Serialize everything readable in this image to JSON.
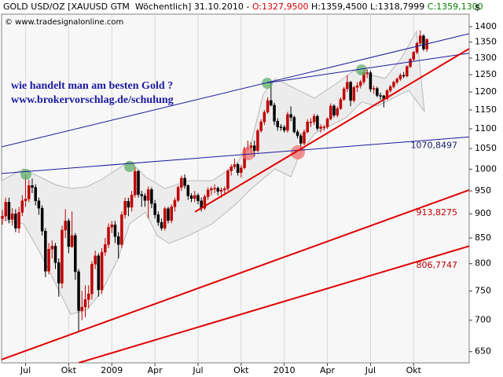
{
  "chart_data": {
    "type": "candlestick",
    "header": [
      {
        "text": "GOLD USD/OZ [XAUUSD GTM  Wöchentlich] 31.10.2010 - ",
        "color": "#000000"
      },
      {
        "text": "O:1327,9500",
        "color": "#d00000"
      },
      {
        "text": " H:1359,4500 L:1318,7999 ",
        "color": "#000000"
      },
      {
        "text": "C:1359,1300",
        "color": "#008000"
      }
    ],
    "copyright": "© www.tradesignalonline.com",
    "y_unit": "$",
    "annotations": [
      "wie handelt man am besten Gold ?",
      "www.brokervorschlag.de/schulung"
    ],
    "categories": [
      null,
      null,
      null,
      null,
      null,
      null,
      null,
      "Jul",
      null,
      null,
      null,
      null,
      null,
      null,
      null,
      null,
      null,
      null,
      null,
      null,
      "Okt",
      null,
      null,
      null,
      null,
      null,
      null,
      null,
      null,
      null,
      null,
      null,
      null,
      "2009",
      null,
      null,
      null,
      null,
      null,
      null,
      null,
      null,
      null,
      null,
      null,
      null,
      "Apr",
      null,
      null,
      null,
      null,
      null,
      null,
      null,
      null,
      null,
      null,
      null,
      null,
      "Jul",
      null,
      null,
      null,
      null,
      null,
      null,
      null,
      null,
      null,
      null,
      null,
      null,
      "Okt",
      null,
      null,
      null,
      null,
      null,
      null,
      null,
      null,
      null,
      null,
      null,
      null,
      "2010",
      null,
      null,
      null,
      null,
      null,
      null,
      null,
      null,
      null,
      null,
      null,
      null,
      "Apr",
      null,
      null,
      null,
      null,
      null,
      null,
      null,
      null,
      null,
      null,
      null,
      null,
      "Jul",
      null,
      null,
      null,
      null,
      null,
      null,
      null,
      null,
      null,
      null,
      null,
      null,
      "Okt",
      null,
      null,
      null,
      null
    ],
    "open": [
      890,
      895,
      925,
      888,
      900,
      870,
      903,
      928,
      932,
      962,
      958,
      928,
      912,
      864,
      786,
      828,
      834,
      802,
      764,
      866,
      885,
      833,
      855,
      785,
      716,
      722,
      735,
      745,
      799,
      815,
      752,
      822,
      837,
      872,
      877,
      853,
      837,
      898,
      927,
      914,
      941,
      995,
      942,
      939,
      929,
      953,
      922,
      898,
      882,
      870,
      911,
      886,
      915,
      929,
      958,
      979,
      962,
      939,
      933,
      940,
      928,
      912,
      937,
      952,
      955,
      956,
      949,
      952,
      955,
      996,
      1006,
      1011,
      992,
      1003,
      1049,
      1052,
      1057,
      1045,
      1095,
      1118,
      1144,
      1176,
      1163,
      1120,
      1105,
      1104,
      1096,
      1138,
      1130,
      1092,
      1082,
      1063,
      1092,
      1118,
      1118,
      1133,
      1101,
      1105,
      1105,
      1126,
      1161,
      1136,
      1154,
      1179,
      1209,
      1228,
      1176,
      1213,
      1218,
      1229,
      1256,
      1256,
      1208,
      1210,
      1190,
      1189,
      1181,
      1204,
      1215,
      1228,
      1237,
      1248,
      1246,
      1274,
      1296,
      1318,
      1346,
      1370,
      1327.95
    ],
    "high": [
      908,
      935,
      935,
      912,
      910,
      915,
      940,
      988,
      975,
      978,
      965,
      935,
      918,
      870,
      840,
      845,
      840,
      810,
      875,
      910,
      890,
      905,
      860,
      790,
      750,
      760,
      760,
      805,
      825,
      820,
      830,
      850,
      880,
      885,
      885,
      862,
      905,
      935,
      935,
      950,
      1005,
      998,
      950,
      945,
      960,
      958,
      930,
      905,
      890,
      915,
      915,
      920,
      935,
      962,
      985,
      988,
      965,
      945,
      950,
      945,
      935,
      942,
      958,
      960,
      965,
      960,
      958,
      960,
      1000,
      1012,
      1025,
      1015,
      1010,
      1055,
      1070,
      1065,
      1070,
      1100,
      1125,
      1150,
      1185,
      1227,
      1170,
      1128,
      1112,
      1110,
      1145,
      1160,
      1135,
      1098,
      1088,
      1098,
      1125,
      1128,
      1140,
      1138,
      1112,
      1110,
      1130,
      1168,
      1166,
      1160,
      1185,
      1215,
      1249,
      1232,
      1218,
      1228,
      1235,
      1264,
      1266,
      1262,
      1218,
      1215,
      1198,
      1192,
      1208,
      1220,
      1232,
      1242,
      1254,
      1258,
      1278,
      1300,
      1322,
      1350,
      1388,
      1375,
      1359.45
    ],
    "low": [
      877,
      885,
      880,
      875,
      862,
      860,
      895,
      915,
      925,
      945,
      918,
      898,
      855,
      775,
      780,
      810,
      790,
      740,
      755,
      850,
      820,
      830,
      770,
      681,
      700,
      705,
      720,
      735,
      790,
      740,
      745,
      815,
      830,
      860,
      840,
      810,
      830,
      890,
      895,
      905,
      935,
      935,
      915,
      915,
      890,
      912,
      890,
      875,
      865,
      865,
      880,
      880,
      905,
      925,
      950,
      955,
      930,
      925,
      925,
      920,
      905,
      908,
      930,
      940,
      945,
      940,
      935,
      940,
      950,
      985,
      1000,
      985,
      980,
      1000,
      1040,
      1040,
      1030,
      1040,
      1090,
      1110,
      1140,
      1160,
      1110,
      1095,
      1095,
      1090,
      1090,
      1120,
      1088,
      1075,
      1045,
      1058,
      1088,
      1105,
      1110,
      1095,
      1090,
      1095,
      1100,
      1122,
      1130,
      1130,
      1150,
      1175,
      1200,
      1160,
      1170,
      1200,
      1210,
      1222,
      1240,
      1200,
      1195,
      1185,
      1178,
      1157,
      1178,
      1198,
      1210,
      1222,
      1232,
      1240,
      1242,
      1270,
      1290,
      1312,
      1340,
      1322,
      1318.7999
    ],
    "close": [
      895,
      925,
      888,
      900,
      870,
      903,
      928,
      932,
      962,
      958,
      928,
      912,
      864,
      786,
      828,
      834,
      802,
      764,
      866,
      885,
      833,
      855,
      785,
      716,
      722,
      735,
      745,
      799,
      815,
      752,
      822,
      837,
      872,
      877,
      853,
      837,
      898,
      927,
      914,
      941,
      995,
      942,
      939,
      929,
      953,
      922,
      898,
      882,
      870,
      911,
      886,
      915,
      929,
      958,
      979,
      962,
      939,
      933,
      940,
      928,
      912,
      937,
      952,
      955,
      956,
      949,
      952,
      955,
      996,
      1006,
      1011,
      992,
      1003,
      1049,
      1052,
      1057,
      1045,
      1095,
      1118,
      1144,
      1176,
      1163,
      1120,
      1105,
      1104,
      1096,
      1138,
      1130,
      1092,
      1082,
      1063,
      1092,
      1118,
      1118,
      1133,
      1101,
      1105,
      1105,
      1126,
      1161,
      1136,
      1154,
      1179,
      1209,
      1228,
      1176,
      1213,
      1218,
      1229,
      1256,
      1256,
      1208,
      1210,
      1190,
      1189,
      1181,
      1204,
      1215,
      1228,
      1237,
      1248,
      1246,
      1274,
      1296,
      1318,
      1346,
      1370,
      1328,
      1359.13
    ],
    "up_color": "#c00000",
    "down_color": "#000000",
    "ylim": [
      633,
      1442
    ],
    "log_y": true,
    "yticks": [
      650,
      700,
      750,
      800,
      850,
      900,
      950,
      1000,
      1050,
      1100,
      1150,
      1200,
      1250,
      1300,
      1350,
      1400
    ],
    "trendlines": [
      {
        "color": "#1a1a9a",
        "values": [
          1054,
          1377
        ]
      },
      {
        "color": "#1a1a9a",
        "values": [
          1226,
          1315
        ]
      },
      {
        "color": "#1a1a9a",
        "values": [
          990,
          1079
        ]
      },
      {
        "color": "#e00000",
        "values": [
          904,
          1329
        ]
      },
      {
        "color": "#e00000",
        "values": [
          638,
          952
        ]
      },
      {
        "color": "#e00000",
        "values": [
          633,
          834
        ]
      }
    ],
    "level_labels": [
      {
        "value": 1070.8497,
        "label": "1070,8497",
        "color": "#1a1a6a"
      },
      {
        "value": 913.8275,
        "label": "913,8275",
        "color": "#c00000"
      },
      {
        "value": 806.7747,
        "label": "806,7747",
        "color": "#c00000"
      }
    ]
  }
}
